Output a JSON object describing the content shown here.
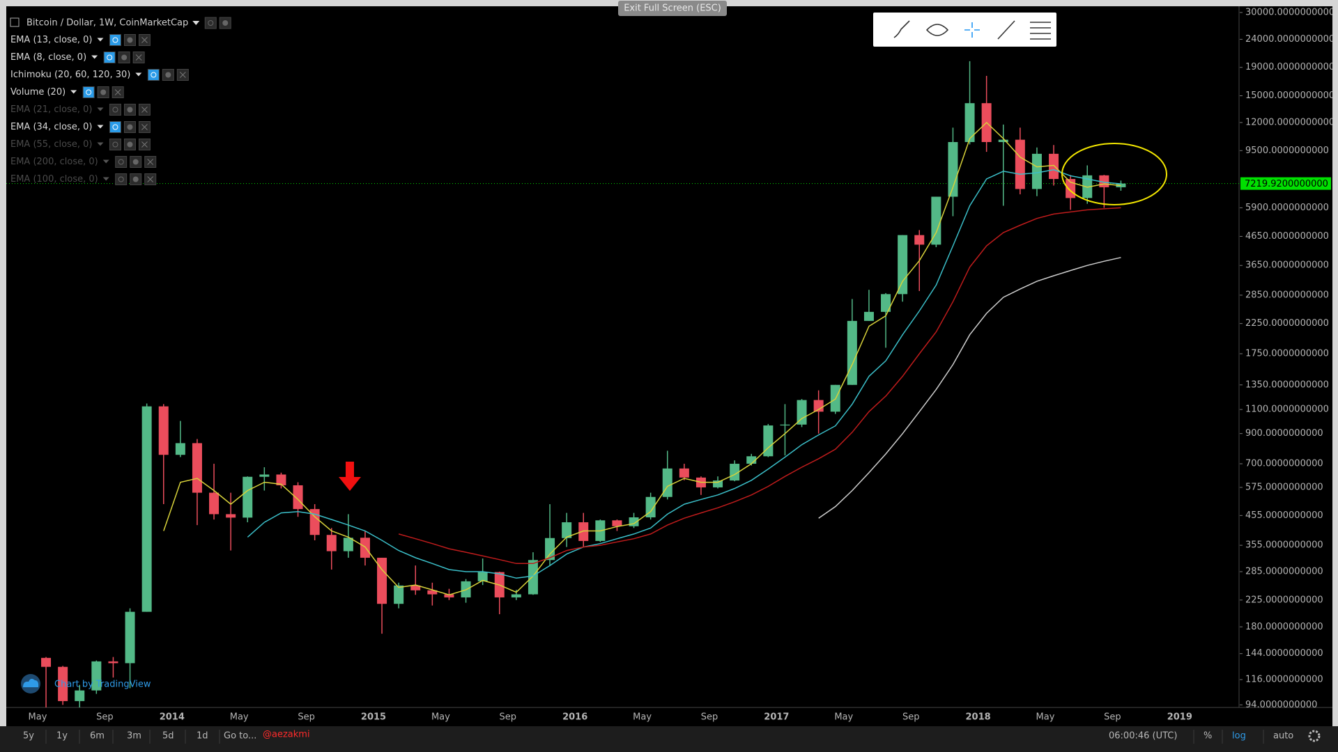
{
  "chart_data": {
    "type": "candlestick",
    "title": "Bitcoin / Dollar, 1W, CoinMarketCap",
    "log_scale": true,
    "grid": false,
    "categories": [
      "May",
      null,
      null,
      null,
      "Sep",
      null,
      null,
      null,
      "2014",
      null,
      null,
      null,
      "May",
      null,
      null,
      null,
      "Sep",
      null,
      null,
      null,
      "2015",
      null,
      null,
      null,
      "May",
      null,
      null,
      null,
      "Sep",
      null,
      null,
      null,
      "2016",
      null,
      null,
      null,
      "May",
      null,
      null,
      null,
      "Sep",
      null,
      null,
      null,
      "2017",
      null,
      null,
      null,
      "May",
      null,
      null,
      null,
      "Sep",
      null,
      null,
      null,
      "2018",
      null,
      null,
      null,
      "May",
      null,
      null,
      null,
      "Sep",
      null,
      null,
      null,
      "2019",
      null,
      null,
      null
    ],
    "open": [
      139,
      129,
      97,
      106,
      135,
      133,
      204,
      1129,
      754,
      831,
      550,
      460,
      447,
      628,
      640,
      585,
      480,
      387,
      338,
      378,
      320,
      218,
      254,
      244,
      236,
      230,
      263,
      284,
      230,
      236,
      314,
      377,
      430,
      368,
      437,
      416,
      448,
      531,
      673,
      624,
      575,
      609,
      700,
      745,
      963,
      970,
      1190,
      1080,
      1350,
      2300,
      2480,
      2875,
      4700,
      4340,
      6470,
      10200,
      14100,
      10200,
      10400,
      6900,
      9250,
      7500,
      6400,
      7730,
      7000,
      null,
      null,
      null,
      null,
      null,
      null,
      null
    ],
    "high": [
      140,
      130,
      111,
      136,
      140,
      210,
      1156,
      1150,
      1000,
      860,
      700,
      550,
      630,
      680,
      650,
      600,
      500,
      410,
      460,
      400,
      320,
      260,
      300,
      260,
      247,
      268,
      318,
      285,
      245,
      335,
      500,
      465,
      465,
      440,
      440,
      465,
      550,
      780,
      700,
      630,
      630,
      720,
      760,
      975,
      1150,
      1200,
      1290,
      1350,
      2760,
      2980,
      2900,
      4700,
      4900,
      6470,
      11500,
      20000,
      17700,
      11800,
      11500,
      9750,
      9950,
      7750,
      8400,
      7760,
      7400,
      null,
      null,
      null,
      null,
      null,
      null,
      null
    ],
    "low": [
      92,
      94,
      68,
      103,
      118,
      108,
      204,
      500,
      740,
      420,
      440,
      340,
      430,
      560,
      570,
      450,
      370,
      290,
      320,
      300,
      170,
      210,
      235,
      215,
      225,
      220,
      255,
      200,
      225,
      235,
      300,
      350,
      350,
      365,
      400,
      410,
      440,
      520,
      610,
      540,
      570,
      605,
      690,
      740,
      750,
      950,
      900,
      1060,
      1350,
      2300,
      1840,
      2700,
      2950,
      4250,
      5500,
      10000,
      9400,
      6000,
      6600,
      6500,
      7100,
      5800,
      6100,
      5900,
      6800,
      null,
      null,
      null,
      null,
      null,
      null,
      null
    ],
    "close": [
      129,
      97,
      106,
      135,
      133,
      204,
      1129,
      754,
      831,
      550,
      460,
      447,
      628,
      640,
      585,
      480,
      387,
      338,
      378,
      320,
      218,
      254,
      244,
      236,
      230,
      263,
      284,
      230,
      236,
      314,
      377,
      430,
      368,
      437,
      416,
      448,
      531,
      673,
      624,
      575,
      609,
      700,
      745,
      963,
      970,
      1190,
      1080,
      1350,
      2300,
      2480,
      2875,
      4700,
      4340,
      6470,
      10200,
      14100,
      10200,
      10400,
      6900,
      9250,
      7500,
      6400,
      7730,
      7000,
      7219.92,
      null,
      null,
      null,
      null,
      null,
      null,
      null
    ],
    "up_color": "#53b987",
    "down_color": "#eb4d5c",
    "ylim": [
      92,
      31600
    ],
    "yticks": [
      {
        "value": 30000,
        "label": "30000.0000000000"
      },
      {
        "value": 24000,
        "label": "24000.0000000000"
      },
      {
        "value": 19000,
        "label": "19000.0000000000"
      },
      {
        "value": 15000,
        "label": "15000.0000000000"
      },
      {
        "value": 12000,
        "label": "12000.0000000000"
      },
      {
        "value": 9500,
        "label": "9500.0000000000"
      },
      {
        "value": 5900,
        "label": "5900.0000000000"
      },
      {
        "value": 4650,
        "label": "4650.0000000000"
      },
      {
        "value": 3650,
        "label": "3650.0000000000"
      },
      {
        "value": 2850,
        "label": "2850.0000000000"
      },
      {
        "value": 2250,
        "label": "2250.0000000000"
      },
      {
        "value": 1750,
        "label": "1750.0000000000"
      },
      {
        "value": 1350,
        "label": "1350.0000000000"
      },
      {
        "value": 1100,
        "label": "1100.0000000000"
      },
      {
        "value": 900,
        "label": "900.0000000000"
      },
      {
        "value": 700,
        "label": "700.0000000000"
      },
      {
        "value": 575,
        "label": "575.0000000000"
      },
      {
        "value": 455,
        "label": "455.0000000000"
      },
      {
        "value": 355,
        "label": "355.0000000000"
      },
      {
        "value": 285,
        "label": "285.0000000000"
      },
      {
        "value": 225,
        "label": "225.0000000000"
      },
      {
        "value": 180,
        "label": "180.0000000000"
      },
      {
        "value": 144,
        "label": "144.0000000000"
      },
      {
        "value": 116,
        "label": "116.0000000000"
      },
      {
        "value": 94,
        "label": "94.0000000000"
      }
    ],
    "last_price": {
      "value": 7219.92,
      "label": "7219.9200000000"
    },
    "last_price_color": "#00e000",
    "studies": [
      {
        "name": "EMA (13, close, 0)",
        "active": true,
        "color": "#d8d23a",
        "values": [
          null,
          null,
          null,
          null,
          null,
          null,
          null,
          400,
          600,
          620,
          560,
          500,
          560,
          600,
          590,
          520,
          450,
          400,
          380,
          350,
          290,
          250,
          255,
          245,
          235,
          245,
          265,
          255,
          240,
          275,
          330,
          380,
          400,
          400,
          415,
          425,
          470,
          580,
          620,
          600,
          600,
          640,
          700,
          800,
          900,
          1020,
          1100,
          1200,
          1600,
          2200,
          2400,
          3200,
          3800,
          4800,
          7000,
          10500,
          12000,
          10500,
          9000,
          8300,
          8400,
          7300,
          7000,
          7200,
          7100,
          null,
          null,
          null,
          null,
          null,
          null,
          null
        ]
      },
      {
        "name": "EMA (8, close, 0)",
        "active": true
      },
      {
        "name": "Ichimoku (20, 60, 120, 30)",
        "active": true
      },
      {
        "name": "Volume (20)",
        "active": true
      },
      {
        "name": "EMA (21, close, 0)",
        "active": false
      },
      {
        "name": "EMA (34, close, 0)",
        "active": true,
        "color": "#3bbfc9",
        "values": [
          null,
          null,
          null,
          null,
          null,
          null,
          null,
          null,
          null,
          null,
          null,
          null,
          380,
          430,
          465,
          470,
          460,
          440,
          420,
          400,
          370,
          340,
          320,
          305,
          290,
          285,
          285,
          280,
          270,
          275,
          300,
          330,
          350,
          360,
          375,
          390,
          410,
          460,
          500,
          520,
          540,
          570,
          610,
          670,
          740,
          820,
          890,
          960,
          1150,
          1450,
          1650,
          2050,
          2500,
          3100,
          4300,
          6000,
          7500,
          8000,
          7800,
          7900,
          8100,
          7700,
          7500,
          7300,
          7200,
          null,
          null,
          null,
          null,
          null,
          null,
          null
        ]
      },
      {
        "name": "EMA (55, close, 0)",
        "active": false
      },
      {
        "name": "EMA (200, close, 0)",
        "active": false,
        "color": "#cfcfcf",
        "values": [
          null,
          null,
          null,
          null,
          null,
          null,
          null,
          null,
          null,
          null,
          null,
          null,
          null,
          null,
          null,
          null,
          null,
          null,
          null,
          null,
          null,
          null,
          null,
          null,
          null,
          null,
          null,
          null,
          null,
          null,
          null,
          null,
          null,
          null,
          null,
          null,
          null,
          null,
          null,
          null,
          null,
          null,
          null,
          null,
          null,
          null,
          445,
          490,
          560,
          650,
          760,
          900,
          1080,
          1300,
          1600,
          2050,
          2450,
          2800,
          3000,
          3200,
          3350,
          3500,
          3650,
          3780,
          3900,
          null,
          null,
          null,
          null,
          null,
          null,
          null
        ]
      },
      {
        "name": "EMA (100, close, 0)",
        "active": false,
        "color": "#c01c1c",
        "values": [
          null,
          null,
          null,
          null,
          null,
          null,
          null,
          null,
          null,
          null,
          null,
          null,
          null,
          null,
          null,
          null,
          null,
          null,
          null,
          null,
          null,
          390,
          375,
          360,
          345,
          335,
          325,
          315,
          305,
          305,
          320,
          340,
          350,
          355,
          365,
          375,
          390,
          420,
          445,
          465,
          485,
          510,
          540,
          580,
          630,
          680,
          730,
          790,
          910,
          1080,
          1230,
          1450,
          1750,
          2100,
          2700,
          3600,
          4300,
          4800,
          5100,
          5400,
          5600,
          5700,
          5800,
          5850,
          5900,
          null,
          null,
          null,
          null,
          null,
          null,
          null
        ]
      }
    ]
  },
  "ui": {
    "exit_full_screen": "Exit Full Screen (ESC)",
    "watermark": "Chart by TradingView",
    "ranges": [
      "5y",
      "1y",
      "6m",
      "3m",
      "5d",
      "1d"
    ],
    "go_to": "Go to...",
    "user": "@aezakmi",
    "clock": "06:00:46 (UTC)",
    "scale_buttons": [
      "%",
      "log",
      "auto"
    ]
  }
}
